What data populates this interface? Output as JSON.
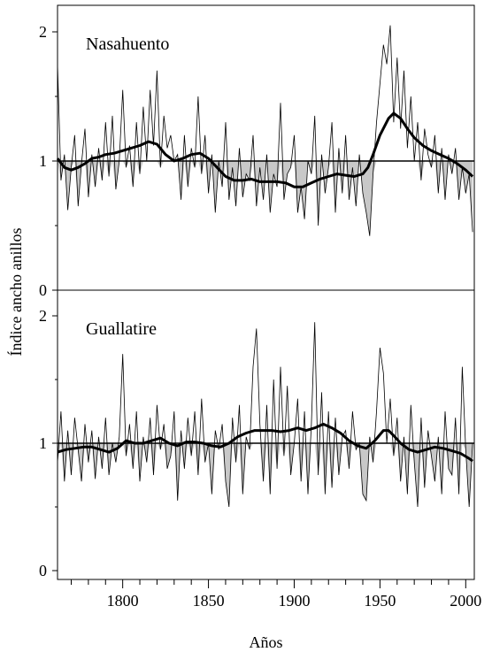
{
  "chart_data": [
    {
      "type": "line",
      "title": "Nasahuento",
      "ylabel": "Índice ancho anillos",
      "xlabel": "Años",
      "xlim": [
        1762,
        2005
      ],
      "ylim": [
        0,
        2.2
      ],
      "x_ticks": [
        1800,
        1850,
        1900,
        1950,
        2000
      ],
      "y_ticks": [
        0,
        1,
        2
      ],
      "reference_line": 1,
      "grid": false,
      "series": [
        {
          "x": [
            1762,
            1764,
            1766,
            1768,
            1770,
            1772,
            1774,
            1776,
            1778,
            1780,
            1782,
            1784,
            1786,
            1788,
            1790,
            1792,
            1794,
            1796,
            1798,
            1800,
            1802,
            1804,
            1806,
            1808,
            1810,
            1812,
            1814,
            1816,
            1818,
            1820,
            1822,
            1824,
            1826,
            1828,
            1830,
            1832,
            1834,
            1836,
            1838,
            1840,
            1842,
            1844,
            1846,
            1848,
            1850,
            1852,
            1854,
            1856,
            1858,
            1860,
            1862,
            1864,
            1866,
            1868,
            1870,
            1872,
            1874,
            1876,
            1878,
            1880,
            1882,
            1884,
            1886,
            1888,
            1890,
            1892,
            1894,
            1896,
            1898,
            1900,
            1902,
            1904,
            1906,
            1908,
            1910,
            1912,
            1914,
            1916,
            1918,
            1920,
            1922,
            1924,
            1926,
            1928,
            1930,
            1932,
            1934,
            1936,
            1938,
            1940,
            1942,
            1944,
            1946,
            1948,
            1950,
            1952,
            1954,
            1956,
            1958,
            1960,
            1962,
            1964,
            1966,
            1968,
            1970,
            1972,
            1974,
            1976,
            1978,
            1980,
            1982,
            1984,
            1986,
            1988,
            1990,
            1992,
            1994,
            1996,
            1998,
            2000,
            2002,
            2004
          ],
          "values": [
            1.75,
            0.85,
            1.05,
            0.62,
            0.95,
            1.2,
            0.65,
            0.98,
            1.25,
            0.72,
            1.05,
            0.8,
            1.1,
            0.85,
            1.3,
            0.88,
            1.35,
            0.78,
            1.0,
            1.55,
            0.95,
            1.12,
            0.8,
            1.3,
            0.9,
            1.42,
            1.0,
            1.55,
            1.12,
            1.7,
            0.95,
            1.35,
            1.1,
            1.2,
            1.0,
            1.05,
            0.7,
            1.2,
            0.8,
            1.1,
            0.95,
            1.5,
            0.9,
            1.2,
            0.75,
            1.05,
            0.6,
            1.0,
            0.8,
            1.3,
            0.7,
            0.95,
            0.65,
            1.1,
            0.72,
            0.9,
            0.85,
            1.2,
            0.65,
            0.95,
            0.7,
            1.05,
            0.6,
            0.9,
            0.8,
            1.45,
            0.7,
            0.9,
            0.95,
            1.2,
            0.6,
            0.8,
            0.55,
            1.0,
            0.9,
            1.35,
            0.5,
            1.05,
            0.75,
            0.95,
            1.3,
            0.6,
            1.1,
            0.75,
            1.2,
            0.7,
            0.95,
            0.65,
            1.05,
            0.75,
            0.6,
            0.42,
            0.9,
            1.3,
            1.6,
            1.9,
            1.75,
            2.05,
            1.3,
            1.8,
            1.25,
            1.7,
            1.1,
            1.5,
            1.0,
            1.3,
            0.85,
            1.25,
            1.05,
            0.95,
            1.2,
            0.75,
            1.1,
            0.7,
            1.05,
            0.9,
            1.1,
            0.7,
            0.95,
            0.75,
            0.9,
            0.45
          ]
        },
        {
          "x": [
            1762,
            1766,
            1770,
            1774,
            1778,
            1782,
            1786,
            1790,
            1795,
            1800,
            1805,
            1810,
            1815,
            1820,
            1825,
            1830,
            1835,
            1840,
            1845,
            1850,
            1855,
            1860,
            1865,
            1870,
            1875,
            1880,
            1885,
            1890,
            1895,
            1900,
            1905,
            1910,
            1915,
            1920,
            1925,
            1930,
            1935,
            1940,
            1943,
            1946,
            1950,
            1955,
            1958,
            1962,
            1966,
            1970,
            1975,
            1980,
            1985,
            1990,
            1995,
            2000,
            2004
          ],
          "values": [
            1.02,
            0.95,
            0.93,
            0.95,
            0.98,
            1.02,
            1.03,
            1.05,
            1.06,
            1.08,
            1.1,
            1.12,
            1.15,
            1.13,
            1.05,
            1.0,
            1.02,
            1.05,
            1.06,
            1.02,
            0.95,
            0.88,
            0.85,
            0.85,
            0.86,
            0.84,
            0.84,
            0.84,
            0.83,
            0.8,
            0.8,
            0.83,
            0.86,
            0.88,
            0.9,
            0.89,
            0.88,
            0.9,
            0.95,
            1.05,
            1.2,
            1.33,
            1.37,
            1.33,
            1.25,
            1.18,
            1.12,
            1.08,
            1.05,
            1.02,
            0.98,
            0.93,
            0.88
          ]
        }
      ]
    },
    {
      "type": "line",
      "title": "Guallatire",
      "ylabel": "Índice ancho anillos",
      "xlabel": "Años",
      "xlim": [
        1762,
        2005
      ],
      "ylim": [
        -0.25,
        2.2
      ],
      "x_ticks": [
        1800,
        1850,
        1900,
        1950,
        2000
      ],
      "y_ticks": [
        0,
        1,
        2
      ],
      "reference_line": 1,
      "grid": false,
      "series": [
        {
          "x": [
            1762,
            1764,
            1766,
            1768,
            1770,
            1772,
            1774,
            1776,
            1778,
            1780,
            1782,
            1784,
            1786,
            1788,
            1790,
            1792,
            1794,
            1796,
            1798,
            1800,
            1802,
            1804,
            1806,
            1808,
            1810,
            1812,
            1814,
            1816,
            1818,
            1820,
            1822,
            1824,
            1826,
            1828,
            1830,
            1832,
            1834,
            1836,
            1838,
            1840,
            1842,
            1844,
            1846,
            1848,
            1850,
            1852,
            1854,
            1856,
            1858,
            1860,
            1862,
            1864,
            1866,
            1868,
            1870,
            1872,
            1874,
            1876,
            1878,
            1880,
            1882,
            1884,
            1886,
            1888,
            1890,
            1892,
            1894,
            1896,
            1898,
            1900,
            1902,
            1904,
            1906,
            1908,
            1910,
            1912,
            1914,
            1916,
            1918,
            1920,
            1922,
            1924,
            1926,
            1928,
            1930,
            1932,
            1934,
            1936,
            1938,
            1940,
            1942,
            1944,
            1946,
            1948,
            1950,
            1952,
            1954,
            1956,
            1958,
            1960,
            1962,
            1964,
            1966,
            1968,
            1970,
            1972,
            1974,
            1976,
            1978,
            1980,
            1982,
            1984,
            1986,
            1988,
            1990,
            1992,
            1994,
            1996,
            1998,
            2000,
            2002,
            2004
          ],
          "values": [
            0.85,
            1.25,
            0.7,
            1.1,
            0.75,
            1.2,
            0.95,
            0.7,
            1.15,
            0.85,
            1.1,
            0.72,
            1.05,
            0.8,
            1.2,
            0.75,
            1.0,
            0.85,
            1.05,
            1.7,
            0.9,
            1.15,
            0.8,
            1.25,
            0.7,
            1.05,
            0.85,
            1.2,
            0.75,
            1.3,
            0.95,
            1.15,
            0.8,
            0.9,
            1.25,
            0.55,
            1.1,
            0.8,
            1.2,
            0.9,
            1.25,
            0.75,
            1.35,
            0.85,
            1.0,
            0.6,
            1.1,
            0.95,
            1.15,
            0.7,
            0.5,
            1.2,
            0.85,
            1.3,
            0.6,
            1.05,
            0.95,
            1.6,
            1.9,
            1.15,
            0.7,
            1.3,
            0.6,
            1.5,
            0.8,
            1.6,
            0.9,
            1.45,
            0.75,
            1.0,
            1.35,
            0.7,
            1.25,
            0.6,
            1.15,
            1.95,
            0.75,
            1.4,
            0.6,
            1.25,
            0.65,
            1.2,
            0.75,
            1.05,
            1.1,
            0.8,
            1.25,
            0.95,
            1.0,
            0.6,
            0.55,
            1.05,
            0.85,
            1.25,
            1.75,
            1.55,
            1.0,
            1.35,
            0.9,
            1.2,
            0.7,
            1.05,
            0.6,
            1.3,
            0.85,
            0.5,
            1.2,
            0.65,
            1.1,
            0.9,
            0.7,
            1.05,
            0.6,
            1.25,
            0.8,
            0.75,
            1.2,
            0.6,
            1.6,
            0.95,
            0.5,
            1.0
          ]
        },
        {
          "x": [
            1762,
            1767,
            1772,
            1777,
            1782,
            1787,
            1792,
            1797,
            1802,
            1807,
            1812,
            1817,
            1822,
            1827,
            1832,
            1837,
            1842,
            1847,
            1852,
            1857,
            1862,
            1867,
            1872,
            1877,
            1882,
            1887,
            1892,
            1897,
            1902,
            1907,
            1912,
            1917,
            1922,
            1927,
            1932,
            1937,
            1942,
            1947,
            1952,
            1955,
            1958,
            1962,
            1967,
            1972,
            1977,
            1982,
            1987,
            1992,
            1997,
            2002,
            2004
          ],
          "values": [
            0.93,
            0.95,
            0.96,
            0.97,
            0.97,
            0.95,
            0.93,
            0.96,
            1.02,
            1.0,
            1.0,
            1.02,
            1.04,
            1.0,
            0.98,
            1.01,
            1.01,
            1.0,
            0.98,
            0.97,
            1.0,
            1.05,
            1.08,
            1.1,
            1.1,
            1.1,
            1.09,
            1.1,
            1.12,
            1.1,
            1.12,
            1.15,
            1.12,
            1.08,
            1.02,
            0.98,
            0.96,
            1.02,
            1.1,
            1.1,
            1.06,
            1.0,
            0.95,
            0.93,
            0.95,
            0.97,
            0.96,
            0.94,
            0.92,
            0.88,
            0.86
          ]
        }
      ]
    }
  ]
}
